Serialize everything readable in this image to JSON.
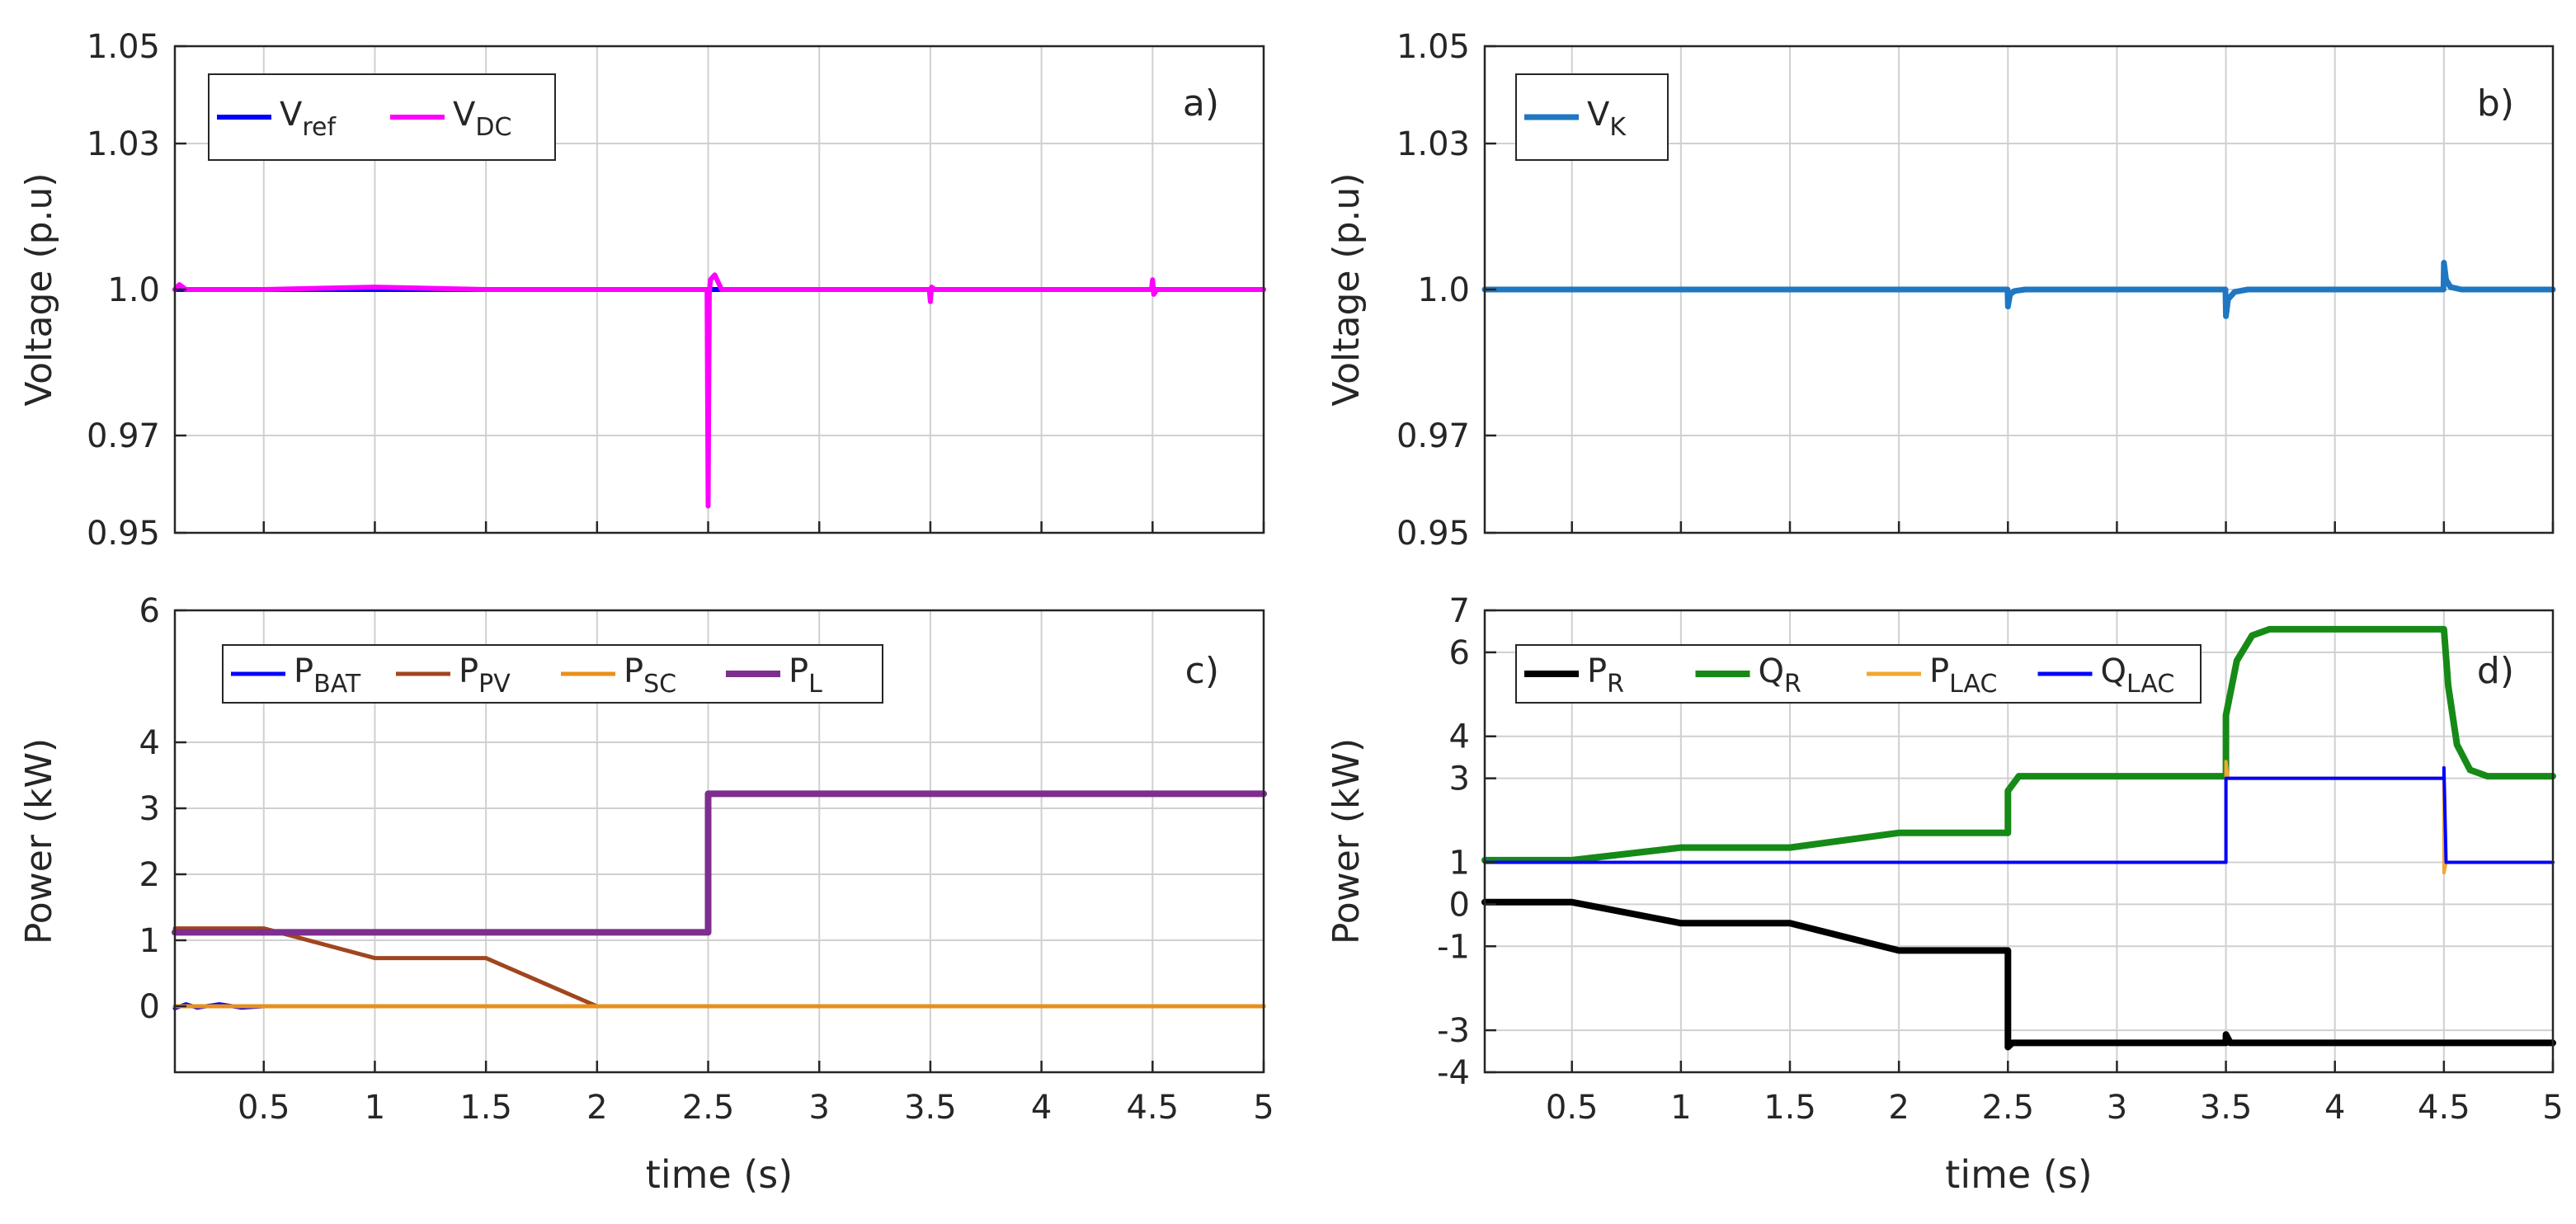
{
  "chart_data": [
    {
      "type": "line",
      "panel": "a)",
      "title": "",
      "xlabel": "",
      "ylabel": "Voltage (p.u)",
      "xlim": [
        0.1,
        5
      ],
      "ylim": [
        0.95,
        1.05
      ],
      "xticks": [
        0.5,
        1,
        1.5,
        2,
        2.5,
        3,
        3.5,
        4,
        4.5,
        5
      ],
      "xtick_labels": [
        "",
        "",
        "",
        "",
        "",
        "",
        "",
        "",
        "",
        ""
      ],
      "yticks": [
        0.95,
        0.97,
        1.0,
        1.03,
        1.05
      ],
      "ytick_labels": [
        "0.95",
        "0.97",
        "1.0",
        "1.03",
        "1.05"
      ],
      "grid": true,
      "legend_position": "top-left",
      "series": [
        {
          "name": "V_ref",
          "legend_main": "V",
          "legend_sub": "ref",
          "color": "#0000ff",
          "width": 6,
          "x": [
            0.1,
            5
          ],
          "y": [
            1.0,
            1.0
          ]
        },
        {
          "name": "V_DC",
          "legend_main": "V",
          "legend_sub": "DC",
          "color": "#ff00ff",
          "width": 6,
          "x": [
            0.1,
            0.12,
            0.15,
            0.5,
            1.0,
            1.5,
            2.0,
            2.495,
            2.5,
            2.505,
            2.51,
            2.53,
            2.56,
            3.495,
            3.5,
            3.505,
            3.52,
            4.495,
            4.5,
            4.505,
            4.52,
            5.0
          ],
          "y": [
            1.0,
            1.001,
            1.0,
            1.0,
            1.0005,
            1.0,
            1.0,
            1.0,
            0.9555,
            0.999,
            1.002,
            1.003,
            1.0,
            1.0,
            0.9975,
            1.0005,
            1.0,
            1.0,
            1.002,
            0.999,
            1.0,
            1.0
          ]
        }
      ]
    },
    {
      "type": "line",
      "panel": "b)",
      "title": "",
      "xlabel": "",
      "ylabel": "Voltage (p.u)",
      "xlim": [
        0.1,
        5
      ],
      "ylim": [
        0.95,
        1.05
      ],
      "xticks": [
        0.5,
        1,
        1.5,
        2,
        2.5,
        3,
        3.5,
        4,
        4.5,
        5
      ],
      "xtick_labels": [
        "",
        "",
        "",
        "",
        "",
        "",
        "",
        "",
        "",
        ""
      ],
      "yticks": [
        0.95,
        0.97,
        1.0,
        1.03,
        1.05
      ],
      "ytick_labels": [
        "0.95",
        "0.97",
        "1.0",
        "1.03",
        "1.05"
      ],
      "grid": true,
      "legend_position": "top-left",
      "series": [
        {
          "name": "V_K",
          "legend_main": "V",
          "legend_sub": "K",
          "color": "#1f77c2",
          "width": 7,
          "x": [
            0.1,
            2.498,
            2.5,
            2.51,
            2.53,
            2.58,
            3.498,
            3.5,
            3.51,
            3.54,
            3.6,
            4.498,
            4.5,
            4.51,
            4.53,
            4.58,
            5.0
          ],
          "y": [
            1.0,
            1.0,
            0.9965,
            0.999,
            0.9997,
            1.0,
            1.0,
            0.9945,
            0.998,
            0.9995,
            1.0,
            1.0,
            1.0055,
            1.002,
            1.0005,
            1.0,
            1.0
          ]
        }
      ]
    },
    {
      "type": "line",
      "panel": "c)",
      "title": "",
      "xlabel": "time (s)",
      "ylabel": "Power (kW)",
      "xlim": [
        0.1,
        5
      ],
      "ylim": [
        -1,
        6
      ],
      "xticks": [
        0.5,
        1,
        1.5,
        2,
        2.5,
        3,
        3.5,
        4,
        4.5,
        5
      ],
      "xtick_labels": [
        "0.5",
        "1",
        "1.5",
        "2",
        "2.5",
        "3",
        "3.5",
        "4",
        "4.5",
        "5"
      ],
      "yticks": [
        0,
        1,
        2,
        3,
        4,
        6
      ],
      "ytick_labels": [
        "0",
        "1",
        "2",
        "3",
        "4",
        "6"
      ],
      "grid": true,
      "legend_position": "top-left",
      "series": [
        {
          "name": "P_BAT",
          "legend_main": "P",
          "legend_sub": "BAT",
          "color": "#0000ff",
          "width": 5,
          "x": [
            0.1,
            0.15,
            0.2,
            0.3,
            0.4,
            0.5,
            5.0
          ],
          "y": [
            -0.03,
            0.03,
            -0.02,
            0.03,
            -0.02,
            0.0,
            0.0
          ]
        },
        {
          "name": "P_PV",
          "legend_main": "P",
          "legend_sub": "PV",
          "color": "#a0461e",
          "width": 5,
          "x": [
            0.1,
            0.5,
            1.0,
            1.5,
            2.0,
            5.0
          ],
          "y": [
            1.18,
            1.18,
            0.73,
            0.73,
            0.0,
            0.0
          ]
        },
        {
          "name": "P_SC",
          "legend_main": "P",
          "legend_sub": "SC",
          "color": "#e8901c",
          "width": 5,
          "x": [
            0.1,
            5.0
          ],
          "y": [
            0.0,
            0.0
          ]
        },
        {
          "name": "P_L",
          "legend_main": "P",
          "legend_sub": "L",
          "color": "#7d2e8e",
          "width": 8,
          "x": [
            0.1,
            2.5,
            2.5,
            5.0
          ],
          "y": [
            1.12,
            1.12,
            3.22,
            3.22
          ]
        }
      ]
    },
    {
      "type": "line",
      "panel": "d)",
      "title": "",
      "xlabel": "time (s)",
      "ylabel": "Power (kW)",
      "xlim": [
        0.1,
        5
      ],
      "ylim": [
        -4,
        7
      ],
      "xticks": [
        0.5,
        1,
        1.5,
        2,
        2.5,
        3,
        3.5,
        4,
        4.5,
        5
      ],
      "xtick_labels": [
        "0.5",
        "1",
        "1.5",
        "2",
        "2.5",
        "3",
        "3.5",
        "4",
        "4.5",
        "5"
      ],
      "yticks": [
        -4,
        -3,
        -1,
        0,
        1,
        3,
        4,
        6,
        7
      ],
      "ytick_labels": [
        "-4",
        "-3",
        "-1",
        "0",
        "1",
        "3",
        "4",
        "6",
        "7"
      ],
      "grid": true,
      "legend_position": "top",
      "series": [
        {
          "name": "P_R",
          "legend_main": "P",
          "legend_sub": "R",
          "color": "#000000",
          "width": 8,
          "x": [
            0.1,
            0.5,
            1.0,
            1.5,
            2.0,
            2.5,
            2.5,
            2.52,
            3.5,
            3.5,
            3.52,
            5.0
          ],
          "y": [
            0.05,
            0.05,
            -0.45,
            -0.45,
            -1.1,
            -1.1,
            -3.4,
            -3.3,
            -3.3,
            -3.1,
            -3.3,
            -3.3
          ]
        },
        {
          "name": "Q_R",
          "legend_main": "Q",
          "legend_sub": "R",
          "color": "#168a16",
          "width": 8,
          "x": [
            0.1,
            0.5,
            1.0,
            1.5,
            2.0,
            2.5,
            2.5,
            2.55,
            3.5,
            3.5,
            3.55,
            3.62,
            3.7,
            4.5,
            4.52,
            4.56,
            4.62,
            4.7,
            5.0
          ],
          "y": [
            1.05,
            1.05,
            1.35,
            1.35,
            1.7,
            1.7,
            2.7,
            3.05,
            3.05,
            4.5,
            5.8,
            6.4,
            6.55,
            6.55,
            5.2,
            3.8,
            3.2,
            3.05,
            3.05
          ]
        },
        {
          "name": "P_LAC",
          "legend_main": "P",
          "legend_sub": "LAC",
          "color": "#f0a830",
          "width": 4,
          "x": [
            0.1,
            3.5,
            3.5,
            3.51,
            4.5,
            4.5,
            4.51,
            5.0
          ],
          "y": [
            1.0,
            1.0,
            3.4,
            3.0,
            3.0,
            0.75,
            1.0,
            1.0
          ]
        },
        {
          "name": "Q_LAC",
          "legend_main": "Q",
          "legend_sub": "LAC",
          "color": "#0000ff",
          "width": 4,
          "x": [
            0.1,
            3.5,
            3.5,
            4.5,
            4.5,
            4.51,
            5.0
          ],
          "y": [
            1.0,
            1.0,
            3.0,
            3.0,
            3.25,
            1.0,
            1.0
          ]
        }
      ]
    }
  ]
}
